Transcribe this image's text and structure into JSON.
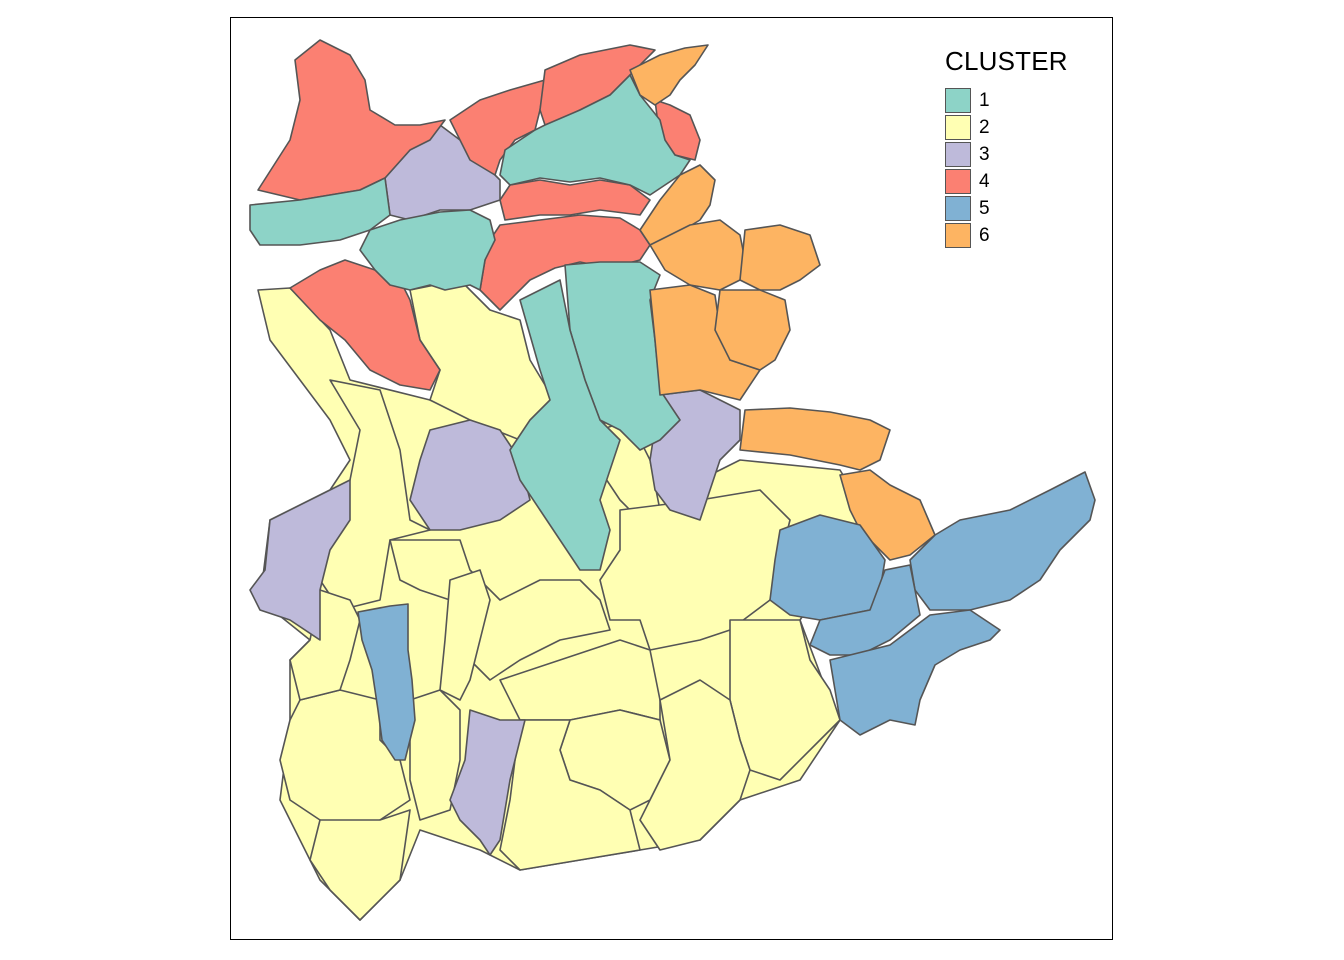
{
  "legend": {
    "title": "CLUSTER",
    "items": [
      {
        "label": "1",
        "color": "#8dd3c7"
      },
      {
        "label": "2",
        "color": "#ffffb3"
      },
      {
        "label": "3",
        "color": "#bebada"
      },
      {
        "label": "4",
        "color": "#fb8072"
      },
      {
        "label": "5",
        "color": "#80b1d3"
      },
      {
        "label": "6",
        "color": "#fdb462"
      }
    ]
  },
  "colors": {
    "border": "#555555",
    "frame": "#000000",
    "background": "#ffffff"
  }
}
